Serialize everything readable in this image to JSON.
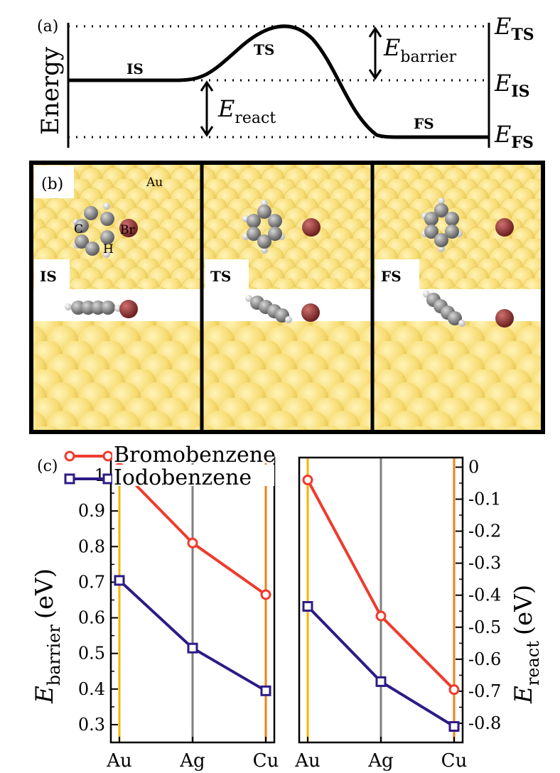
{
  "panel_a": {
    "label": "(a)",
    "ylabel": "Energy",
    "states": {
      "is": "IS",
      "ts": "TS",
      "fs": "FS"
    },
    "levels": {
      "ts": {
        "sym": "E",
        "sub": "TS"
      },
      "is": {
        "sym": "E",
        "sub": "IS"
      },
      "fs": {
        "sym": "E",
        "sub": "FS"
      }
    },
    "barrier": {
      "sym": "E",
      "sub": "barrier"
    },
    "react": {
      "sym": "E",
      "sub": "react"
    }
  },
  "panel_b": {
    "label": "(b)",
    "surface_label": "Au",
    "atom_labels": {
      "c": "C",
      "h": "H",
      "br": "Br"
    },
    "frames": [
      "IS",
      "TS",
      "FS"
    ],
    "colors": {
      "gold": "#f8df78",
      "carbon": "#7f7f7f",
      "hydrogen": "#e8e8e8",
      "bromine": "#8b3a3a"
    }
  },
  "chart_data": [
    {
      "type": "line",
      "label": "(c)",
      "categories": [
        "Au",
        "Ag",
        "Cu"
      ],
      "series": [
        {
          "name": "Bromobenzene",
          "color": "#ef3b2c",
          "marker": "circle",
          "values": [
            1.02,
            0.81,
            0.665
          ]
        },
        {
          "name": "Iodobenzene",
          "color": "#2e1a87",
          "marker": "square",
          "values": [
            0.705,
            0.515,
            0.395
          ]
        }
      ],
      "ylabel": {
        "sym": "E",
        "sub": "barrier",
        "unit": "(eV)"
      },
      "ylim": [
        0.25,
        1.05
      ],
      "yticks": [
        "0.3",
        "0.4",
        "0.5",
        "0.6",
        "0.7",
        "0.8",
        "0.9",
        "1"
      ],
      "yaxis": "left",
      "gridlines": {
        "Au": "#f5b400",
        "Ag": "#7f7f7f",
        "Cu": "#f07f1a"
      }
    },
    {
      "type": "line",
      "categories": [
        "Au",
        "Ag",
        "Cu"
      ],
      "series": [
        {
          "name": "Bromobenzene",
          "color": "#ef3b2c",
          "marker": "circle",
          "values": [
            -0.04,
            -0.465,
            -0.695
          ]
        },
        {
          "name": "Iodobenzene",
          "color": "#2e1a87",
          "marker": "square",
          "values": [
            -0.435,
            -0.67,
            -0.81
          ]
        }
      ],
      "ylabel": {
        "sym": "E",
        "sub": "react",
        "unit": "(eV)"
      },
      "ylim": [
        -0.86,
        0.03
      ],
      "yticks": [
        "0",
        "-0.1",
        "-0.2",
        "-0.3",
        "-0.4",
        "-0.5",
        "-0.6",
        "-0.7",
        "-0.8"
      ],
      "yaxis": "right",
      "gridlines": {
        "Au": "#f5b400",
        "Ag": "#7f7f7f",
        "Cu": "#f07f1a"
      }
    }
  ]
}
